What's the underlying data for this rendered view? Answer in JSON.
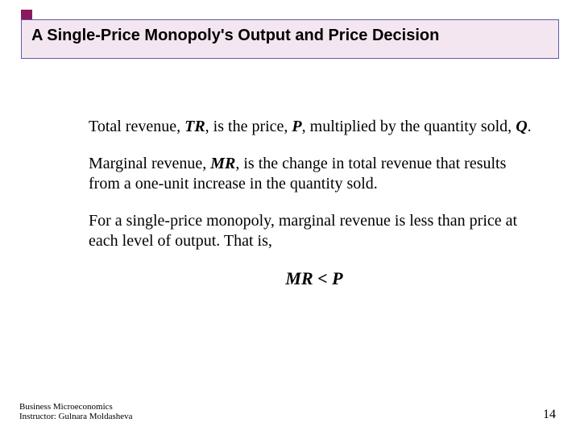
{
  "accent_color": "#8b1a5c",
  "title_box": {
    "border_color": "#5a5aaa",
    "bg_color": "#f4e6f0",
    "text": "A Single-Price Monopoly's Output and Price Decision"
  },
  "paragraphs": {
    "p1": {
      "t1": "Total revenue, ",
      "tr": "TR",
      "t2": ", is the price, ",
      "p": "P",
      "t3": ", multiplied by the quantity sold, ",
      "q": "Q",
      "t4": "."
    },
    "p2": {
      "t1": "Marginal revenue, ",
      "mr": "MR",
      "t2": ", is the change in total revenue that results from a one-unit increase in the quantity sold."
    },
    "p3": "For a single-price monopoly, marginal revenue is less than price at each level of output. That is,",
    "formula": "MR < P"
  },
  "footer": {
    "line1": "Business Microeconomics",
    "line2": "Instructor: Gulnara Moldasheva",
    "page": "14"
  }
}
